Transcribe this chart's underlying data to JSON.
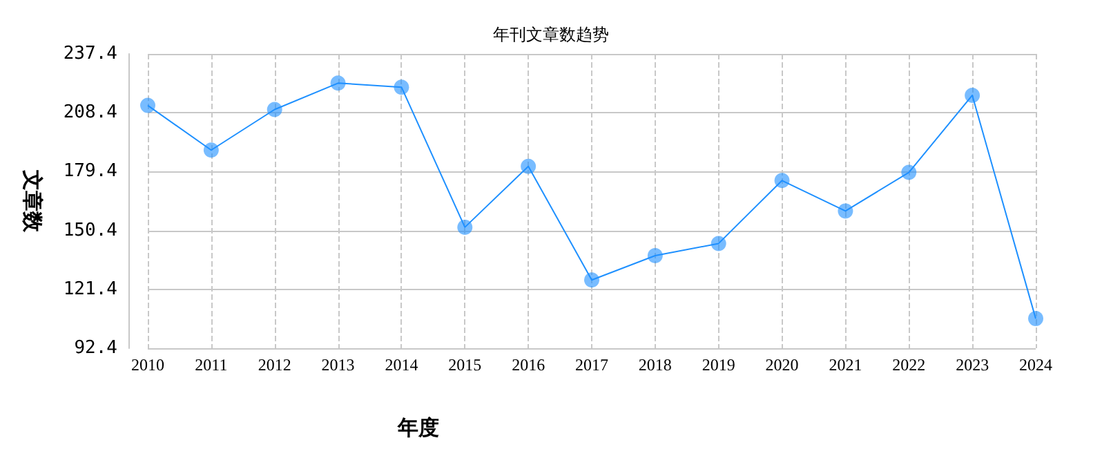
{
  "chart_data": {
    "type": "line",
    "title": "年刊文章数趋势",
    "xlabel": "年度",
    "ylabel": "文章数",
    "categories": [
      "2010",
      "2011",
      "2012",
      "2013",
      "2014",
      "2015",
      "2016",
      "2017",
      "2018",
      "2019",
      "2020",
      "2021",
      "2022",
      "2023",
      "2024"
    ],
    "series": [
      {
        "color": "#1e90ff",
        "values": [
          212,
          190,
          210,
          223,
          221,
          152,
          182,
          126,
          138,
          144,
          175,
          160,
          179,
          217,
          107
        ]
      }
    ],
    "ylim": [
      92.4,
      237.4
    ],
    "yticks": [
      92.4,
      121.4,
      150.4,
      179.4,
      208.4,
      237.4
    ],
    "grid": true,
    "marker": "circle",
    "line_style": "solid"
  }
}
